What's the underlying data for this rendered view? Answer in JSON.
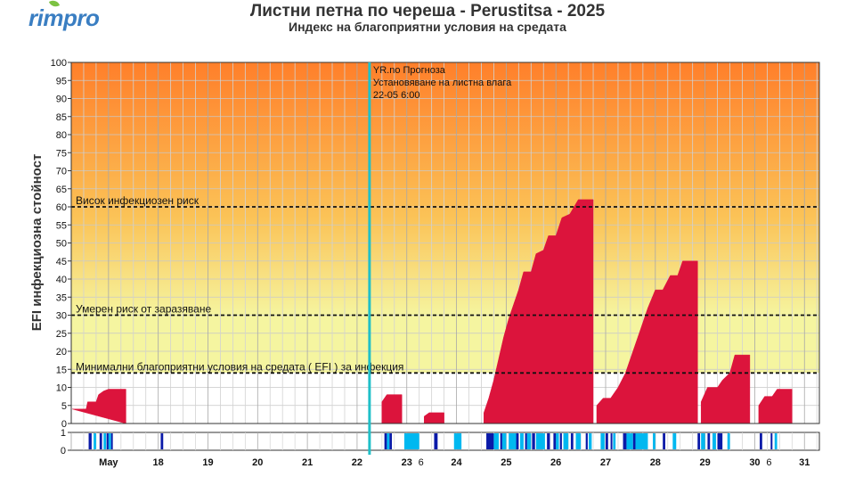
{
  "header": {
    "logo_text": "rimpro",
    "title": "Листни петна по череша - Perustitsa - 2025",
    "subtitle": "Индекс на благоприятни условия на средата"
  },
  "colors": {
    "efi_fill": "#dc143c",
    "forecast_line": "#20c0c8",
    "wet_dark": "#0a1aa8",
    "wet_light": "#00b8f0",
    "bg_top": "#ff7f2a",
    "bg_bottom": "#f5f5a0"
  },
  "chart_data": [
    {
      "type": "area",
      "ylabel": "EFI инфекциозна стойност",
      "ylim": [
        0,
        100
      ],
      "yticks": [
        "0",
        "5",
        "10",
        "15",
        "20",
        "25",
        "30",
        "35",
        "40",
        "45",
        "50",
        "55",
        "60",
        "65",
        "70",
        "75",
        "80",
        "85",
        "90",
        "95",
        "100"
      ],
      "xticks": [
        {
          "day": 17,
          "label": "May"
        },
        {
          "day": 18,
          "label": "18"
        },
        {
          "day": 19,
          "label": "19"
        },
        {
          "day": 20,
          "label": "20"
        },
        {
          "day": 21,
          "label": "21"
        },
        {
          "day": 22,
          "label": "22"
        },
        {
          "day": 23,
          "label": "23"
        },
        {
          "day": 23.25,
          "label": "6"
        },
        {
          "day": 24,
          "label": "24"
        },
        {
          "day": 25,
          "label": "25"
        },
        {
          "day": 26,
          "label": "26"
        },
        {
          "day": 27,
          "label": "27"
        },
        {
          "day": 28,
          "label": "28"
        },
        {
          "day": 29,
          "label": "29"
        },
        {
          "day": 30,
          "label": "30"
        },
        {
          "day": 30.25,
          "label": "6"
        },
        {
          "day": 31,
          "label": "31"
        }
      ],
      "x_range_days": [
        16.25,
        31.3
      ],
      "thresholds": [
        {
          "value": 60,
          "label": "Висок инфекциозен риск"
        },
        {
          "value": 30,
          "label": "Умерен риск от заразяване"
        },
        {
          "value": 14,
          "label": "Минимални благоприятни условия на средата ( EFI ) за инфекция"
        }
      ],
      "forecast_marker": {
        "day": 22.25,
        "lines": [
          "YR.no Прогноза",
          "Установяване на листна влага",
          "22-05 6:00"
        ]
      },
      "series": [
        {
          "values": [
            [
              16.27,
              4
            ],
            [
              16.55,
              4
            ],
            [
              16.58,
              6
            ],
            [
              16.75,
              6
            ],
            [
              16.8,
              8
            ],
            [
              16.9,
              9
            ],
            [
              17.0,
              9.5
            ],
            [
              17.35,
              9.5
            ],
            [
              17.35,
              0
            ]
          ]
        },
        {
          "values": [
            [
              22.5,
              0
            ],
            [
              22.5,
              6
            ],
            [
              22.6,
              8
            ],
            [
              22.9,
              8
            ],
            [
              22.9,
              0
            ]
          ]
        },
        {
          "values": [
            [
              23.35,
              0
            ],
            [
              23.35,
              2
            ],
            [
              23.45,
              3
            ],
            [
              23.75,
              3
            ],
            [
              23.75,
              0
            ]
          ]
        },
        {
          "values": [
            [
              24.55,
              0
            ],
            [
              24.55,
              3
            ],
            [
              24.65,
              7
            ],
            [
              24.75,
              12
            ],
            [
              24.85,
              18
            ],
            [
              24.95,
              24
            ],
            [
              25.05,
              29
            ],
            [
              25.15,
              33
            ],
            [
              25.25,
              37
            ],
            [
              25.35,
              42
            ],
            [
              25.5,
              42
            ],
            [
              25.6,
              47
            ],
            [
              25.75,
              48
            ],
            [
              25.85,
              52
            ],
            [
              26.0,
              52
            ],
            [
              26.12,
              57
            ],
            [
              26.28,
              58
            ],
            [
              26.45,
              62
            ],
            [
              26.75,
              62
            ],
            [
              26.75,
              0
            ]
          ]
        },
        {
          "values": [
            [
              26.82,
              0
            ],
            [
              26.82,
              5
            ],
            [
              26.95,
              7
            ],
            [
              27.1,
              7
            ],
            [
              27.25,
              10
            ],
            [
              27.4,
              14
            ],
            [
              27.55,
              20
            ],
            [
              27.7,
              26
            ],
            [
              27.85,
              32
            ],
            [
              28.0,
              37
            ],
            [
              28.15,
              37
            ],
            [
              28.3,
              41
            ],
            [
              28.45,
              41
            ],
            [
              28.55,
              45
            ],
            [
              28.85,
              45
            ],
            [
              28.85,
              0
            ]
          ]
        },
        {
          "values": [
            [
              28.92,
              0
            ],
            [
              28.92,
              6
            ],
            [
              29.05,
              10
            ],
            [
              29.25,
              10
            ],
            [
              29.35,
              12
            ],
            [
              29.5,
              14
            ],
            [
              29.6,
              19
            ],
            [
              29.9,
              19
            ],
            [
              29.9,
              0
            ]
          ]
        },
        {
          "values": [
            [
              30.08,
              0
            ],
            [
              30.08,
              5
            ],
            [
              30.2,
              7.5
            ],
            [
              30.35,
              7.5
            ],
            [
              30.45,
              9.5
            ],
            [
              30.75,
              9.5
            ],
            [
              30.75,
              0
            ]
          ]
        }
      ]
    },
    {
      "type": "bar",
      "title": "",
      "ylim": [
        0,
        1
      ],
      "yticks": [
        "0",
        "1"
      ],
      "segments_dark": [
        [
          16.6,
          16.66
        ],
        [
          16.82,
          16.87
        ],
        [
          16.96,
          17.0
        ],
        [
          17.05,
          17.08
        ],
        [
          18.05,
          18.1
        ],
        [
          22.55,
          22.6
        ],
        [
          22.65,
          22.7
        ],
        [
          23.55,
          23.62
        ],
        [
          24.6,
          24.75
        ],
        [
          24.88,
          24.92
        ],
        [
          25.2,
          25.25
        ],
        [
          25.38,
          25.42
        ],
        [
          25.52,
          25.58
        ],
        [
          25.82,
          25.88
        ],
        [
          25.95,
          26.0
        ],
        [
          26.08,
          26.12
        ],
        [
          26.3,
          26.35
        ],
        [
          26.6,
          26.64
        ],
        [
          27.0,
          27.05
        ],
        [
          27.1,
          27.13
        ],
        [
          27.35,
          27.42
        ],
        [
          27.55,
          27.6
        ],
        [
          28.15,
          28.2
        ],
        [
          28.85,
          28.9
        ],
        [
          29.05,
          29.1
        ],
        [
          29.25,
          29.35
        ],
        [
          30.1,
          30.15
        ],
        [
          30.32,
          30.35
        ]
      ],
      "segments_light": [
        [
          16.7,
          16.75
        ],
        [
          16.9,
          16.95
        ],
        [
          17.0,
          17.05
        ],
        [
          22.6,
          22.65
        ],
        [
          22.95,
          23.25
        ],
        [
          23.95,
          24.1
        ],
        [
          24.75,
          24.85
        ],
        [
          24.92,
          25.0
        ],
        [
          25.05,
          25.2
        ],
        [
          25.28,
          25.35
        ],
        [
          25.42,
          25.5
        ],
        [
          25.6,
          25.78
        ],
        [
          26.0,
          26.06
        ],
        [
          26.15,
          26.25
        ],
        [
          26.4,
          26.5
        ],
        [
          26.66,
          26.72
        ],
        [
          26.9,
          26.98
        ],
        [
          27.15,
          27.2
        ],
        [
          27.42,
          27.55
        ],
        [
          27.6,
          27.85
        ],
        [
          27.95,
          28.0
        ],
        [
          28.35,
          28.42
        ],
        [
          28.92,
          29.0
        ],
        [
          29.15,
          29.22
        ],
        [
          29.45,
          29.5
        ],
        [
          30.4,
          30.45
        ]
      ]
    }
  ]
}
